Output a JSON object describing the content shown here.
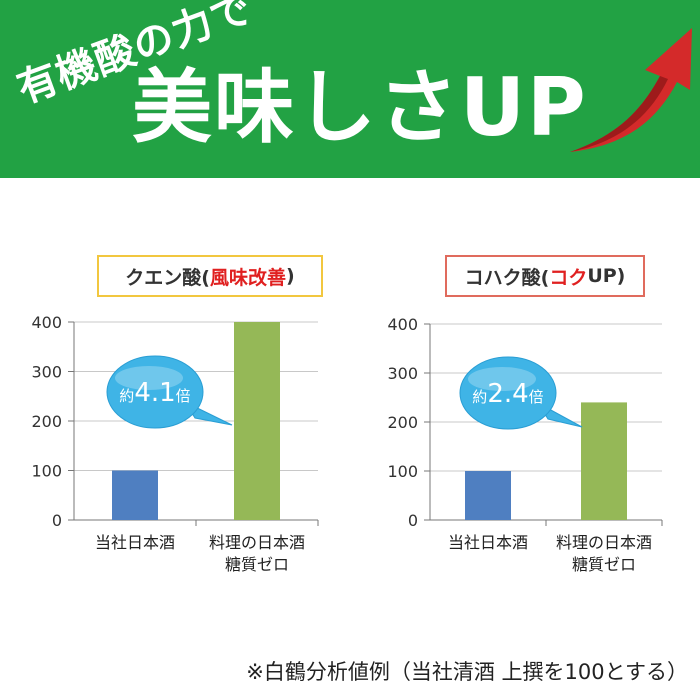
{
  "banner": {
    "subtitle": "有機酸の力で",
    "title": "美味しさUP",
    "colors": {
      "background": "#22a244",
      "arrow": "#d42a2a"
    },
    "arrow_icon": "red-up-arrow"
  },
  "chart_data": [
    {
      "type": "bar",
      "title_prefix": "クエン酸(",
      "title_highlight": "風味改善",
      "title_suffix": ")",
      "categories": [
        "当社日本酒",
        "料理の日本酒\n糖質ゼロ"
      ],
      "values": [
        100,
        410
      ],
      "ylim": [
        0,
        400
      ],
      "yticks": [
        0,
        100,
        200,
        300,
        400
      ],
      "grid": true,
      "bar_colors": [
        "#4f7fc1",
        "#95b857"
      ],
      "callout": {
        "prefix": "約",
        "value": "4.1",
        "suffix": "倍"
      }
    },
    {
      "type": "bar",
      "title_prefix": "コハク酸(",
      "title_highlight": "コク",
      "title_suffix": "UP)",
      "categories": [
        "当社日本酒",
        "料理の日本酒\n糖質ゼロ"
      ],
      "values": [
        100,
        240
      ],
      "ylim": [
        0,
        400
      ],
      "yticks": [
        0,
        100,
        200,
        300,
        400
      ],
      "grid": true,
      "bar_colors": [
        "#4f7fc1",
        "#95b857"
      ],
      "callout": {
        "prefix": "約",
        "value": "2.4",
        "suffix": "倍"
      }
    }
  ],
  "footnote": "※白鶴分析値例（当社清酒 上撰を100とする）"
}
